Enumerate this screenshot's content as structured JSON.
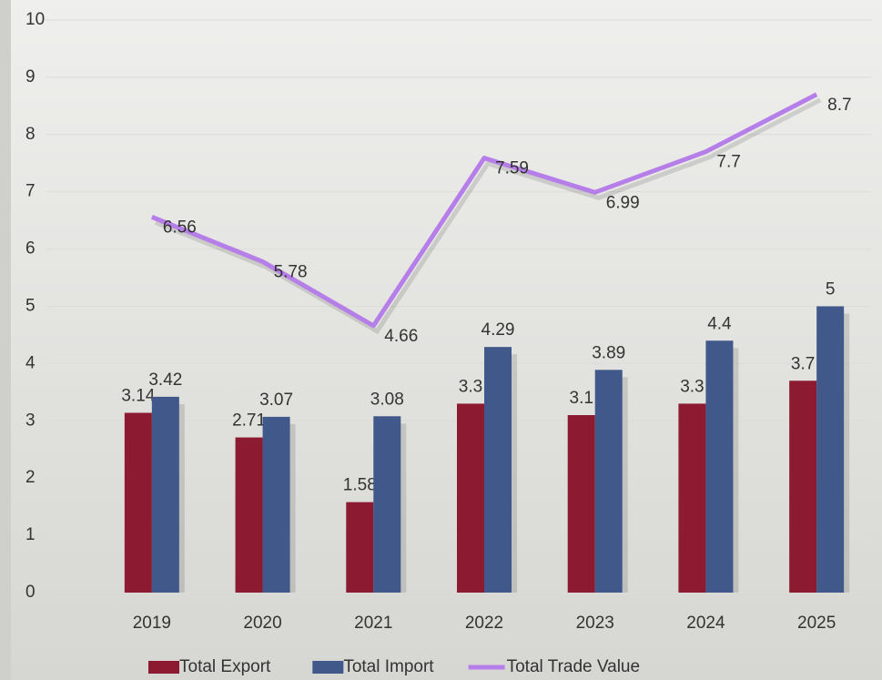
{
  "chart_data": {
    "type": "bar",
    "categories": [
      "2019",
      "2020",
      "2021",
      "2022",
      "2023",
      "2024",
      "2025"
    ],
    "series": [
      {
        "name": "Total Export",
        "color": "#8c1a30",
        "values": [
          3.14,
          2.71,
          1.58,
          3.3,
          3.1,
          3.3,
          3.7
        ]
      },
      {
        "name": "Total Import",
        "color": "#41598a",
        "values": [
          3.42,
          3.07,
          3.08,
          4.29,
          3.89,
          4.4,
          5
        ]
      },
      {
        "name": "Total Trade Value",
        "color": "#b57ee8",
        "type": "line",
        "values": [
          6.56,
          5.78,
          4.66,
          7.59,
          6.99,
          7.7,
          8.7
        ]
      }
    ],
    "ylim": [
      0,
      10
    ],
    "yticks": [
      0,
      1,
      2,
      3,
      4,
      5,
      6,
      7,
      8,
      9,
      10
    ],
    "grid": true,
    "legend": "bottom"
  }
}
